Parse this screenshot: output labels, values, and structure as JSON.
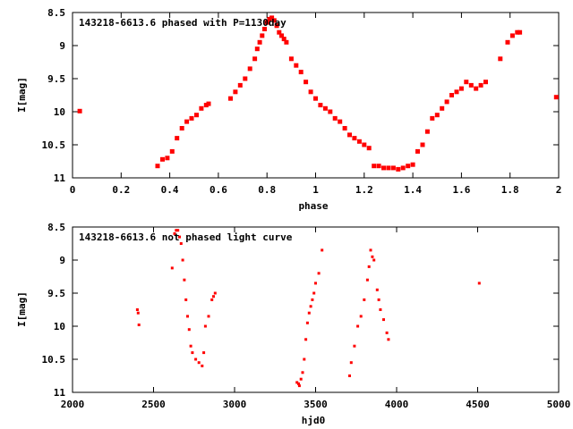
{
  "chart_data": [
    {
      "type": "scatter",
      "title": "143218-6613.6 phased with P=1130day",
      "xlabel": "phase",
      "ylabel": "I[mag]",
      "xlim": [
        0,
        2
      ],
      "ylim": [
        11,
        8.5
      ],
      "y_inverted": true,
      "grid": false,
      "x_ticks": [
        "0",
        "0.2",
        "0.4",
        "0.6",
        "0.8",
        "1",
        "1.2",
        "1.4",
        "1.6",
        "1.8",
        "2"
      ],
      "y_ticks": [
        "8.5",
        "9",
        "9.5",
        "10",
        "10.5",
        "11"
      ],
      "marker_color": "#ff0000",
      "series": [
        {
          "x": [
            0.03,
            0.35,
            0.37,
            0.39,
            0.41,
            0.43,
            0.45,
            0.47,
            0.49,
            0.51,
            0.53,
            0.55,
            0.56,
            0.65,
            0.67,
            0.69,
            0.71,
            0.73,
            0.75,
            0.76,
            0.77,
            0.78,
            0.79,
            0.8,
            0.81,
            0.82,
            0.83,
            0.84,
            0.85,
            0.86,
            0.87,
            0.88,
            0.9,
            0.92,
            0.94,
            0.96,
            0.98,
            1.0,
            1.02,
            1.04,
            1.06,
            1.08,
            1.1,
            1.12,
            1.14,
            1.16,
            1.18,
            1.2,
            1.22,
            1.24,
            1.26,
            1.28,
            1.3,
            1.32,
            1.34,
            1.36,
            1.38,
            1.4,
            1.42,
            1.44,
            1.46,
            1.48,
            1.5,
            1.52,
            1.54,
            1.56,
            1.58,
            1.6,
            1.62,
            1.64,
            1.66,
            1.68,
            1.7,
            1.76,
            1.79,
            1.81,
            1.83,
            1.84,
            1.99
          ],
          "y": [
            9.99,
            10.82,
            10.72,
            10.7,
            10.6,
            10.4,
            10.25,
            10.15,
            10.1,
            10.05,
            9.95,
            9.9,
            9.88,
            9.8,
            9.7,
            9.6,
            9.5,
            9.35,
            9.2,
            9.05,
            8.95,
            8.85,
            8.75,
            8.65,
            8.6,
            8.58,
            8.62,
            8.7,
            8.8,
            8.85,
            8.9,
            8.95,
            9.2,
            9.3,
            9.4,
            9.55,
            9.7,
            9.8,
            9.9,
            9.95,
            10.0,
            10.1,
            10.15,
            10.25,
            10.35,
            10.4,
            10.45,
            10.5,
            10.55,
            10.82,
            10.82,
            10.85,
            10.85,
            10.85,
            10.87,
            10.85,
            10.82,
            10.8,
            10.6,
            10.5,
            10.3,
            10.1,
            10.05,
            9.95,
            9.85,
            9.75,
            9.7,
            9.65,
            9.55,
            9.6,
            9.65,
            9.6,
            9.55,
            9.2,
            8.95,
            8.85,
            8.8,
            8.8,
            9.78
          ]
        }
      ]
    },
    {
      "type": "scatter",
      "title": "143218-6613.6 not phased light curve",
      "xlabel": "hjd0",
      "ylabel": "I[mag]",
      "xlim": [
        2000,
        5000
      ],
      "ylim": [
        11,
        8.5
      ],
      "y_inverted": true,
      "grid": false,
      "x_ticks": [
        "2000",
        "2500",
        "3000",
        "3500",
        "4000",
        "4500",
        "5000"
      ],
      "y_ticks": [
        "8.5",
        "9",
        "9.5",
        "10",
        "10.5",
        "11"
      ],
      "marker_color": "#ff0000",
      "series": [
        {
          "x": [
            2400,
            2405,
            2410,
            2615,
            2630,
            2640,
            2650,
            2660,
            2670,
            2680,
            2690,
            2700,
            2710,
            2720,
            2730,
            2740,
            2760,
            2780,
            2800,
            2810,
            2820,
            2840,
            2860,
            2870,
            2880,
            3385,
            3395,
            3400,
            3410,
            3420,
            3430,
            3440,
            3450,
            3460,
            3470,
            3480,
            3490,
            3500,
            3520,
            3540,
            3710,
            3720,
            3740,
            3760,
            3780,
            3800,
            3820,
            3830,
            3840,
            3850,
            3860,
            3880,
            3890,
            3900,
            3920,
            3940,
            3950,
            4510
          ],
          "y": [
            9.75,
            9.8,
            9.98,
            9.12,
            8.6,
            8.55,
            8.55,
            8.65,
            8.75,
            9.0,
            9.3,
            9.6,
            9.85,
            10.05,
            10.3,
            10.4,
            10.5,
            10.55,
            10.6,
            10.4,
            10.0,
            9.85,
            9.6,
            9.55,
            9.5,
            10.85,
            10.87,
            10.9,
            10.8,
            10.7,
            10.5,
            10.2,
            9.95,
            9.8,
            9.7,
            9.6,
            9.5,
            9.35,
            9.2,
            8.85,
            10.75,
            10.55,
            10.3,
            10.0,
            9.85,
            9.6,
            9.3,
            9.1,
            8.85,
            8.95,
            9.0,
            9.45,
            9.6,
            9.75,
            9.9,
            10.1,
            10.2,
            9.35
          ]
        }
      ]
    }
  ]
}
